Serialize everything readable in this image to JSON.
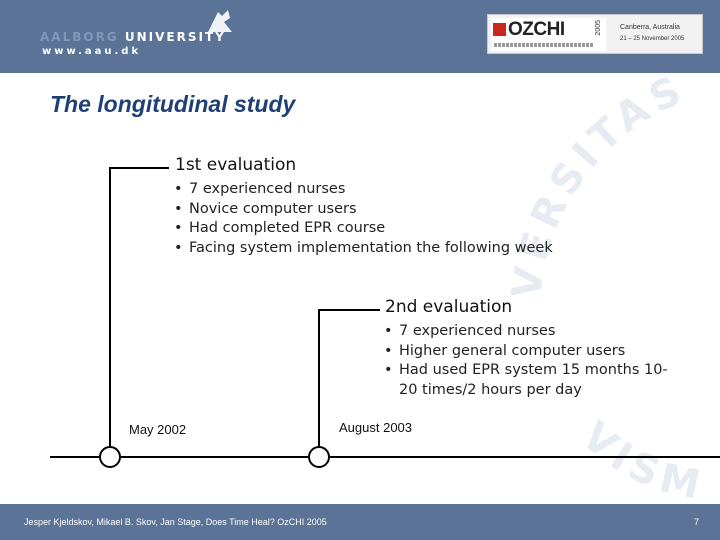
{
  "header": {
    "university_prefix": "AALBORG",
    "university_label": "UNIVERSITY",
    "university_url": "www.aau.dk",
    "conference_logo": "OZCHI",
    "conference_year": "2005",
    "conference_city": "Canberra, Australia",
    "conference_dates": "21 – 25 November 2005"
  },
  "slide": {
    "title": "The longitudinal study"
  },
  "evaluation_1": {
    "heading": "1st evaluation",
    "bullets": [
      "7 experienced nurses",
      "Novice computer users",
      "Had completed EPR course",
      "Facing system implementation the following week"
    ]
  },
  "evaluation_2": {
    "heading": "2nd evaluation",
    "bullets": [
      "7 experienced nurses",
      "Higher general computer users",
      "Had used EPR system 15 months 10-20 times/2 hours per day"
    ]
  },
  "timeline": {
    "date_1": "May 2002",
    "date_2": "August 2003"
  },
  "footer": {
    "citation": "Jesper Kjeldskov, Mikael B. Skov, Jan Stage, Does Time Heal? OzCHI 2005",
    "page_number": "7"
  },
  "watermark_text": "AALBORG UNIVERSITAS VIS MAGNA",
  "colors": {
    "header_bg": "#5a7396",
    "title": "#1f3f77",
    "ozchi_red": "#c8281e"
  }
}
